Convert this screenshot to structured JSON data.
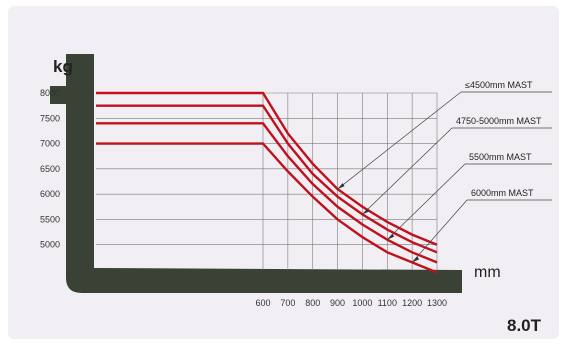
{
  "chart_data": {
    "type": "line",
    "title": "",
    "y_unit": "kg",
    "x_unit": "mm",
    "model_label": "8.0T",
    "ylim": [
      4500,
      8000
    ],
    "xlim": [
      600,
      1300
    ],
    "y_ticks": [
      8000,
      7500,
      7000,
      6500,
      6000,
      5500,
      5000
    ],
    "y_tick_labels": [
      "8000",
      "7500",
      "7000",
      "6500",
      "6000",
      "5500",
      "5000"
    ],
    "x_ticks": [
      600,
      700,
      800,
      900,
      1000,
      1100,
      1200,
      1300
    ],
    "x_tick_labels": [
      "600",
      "700",
      "800",
      "900",
      "1000",
      "1100",
      "1200",
      "1300"
    ],
    "grid": true,
    "line_color": "#c0111d",
    "grid_color": "#7a7a7a",
    "fork_color": "#3a4236",
    "series": [
      {
        "name": "≤4500mm MAST",
        "x": [
          600,
          700,
          800,
          900,
          1000,
          1100,
          1200,
          1300
        ],
        "y": [
          8000,
          7200,
          6600,
          6100,
          5750,
          5450,
          5200,
          5000
        ]
      },
      {
        "name": "4750-5000mm MAST",
        "x": [
          600,
          700,
          800,
          900,
          1000,
          1100,
          1200,
          1300
        ],
        "y": [
          7750,
          7000,
          6400,
          5950,
          5600,
          5300,
          5050,
          4850
        ]
      },
      {
        "name": "5500mm MAST",
        "x": [
          600,
          700,
          800,
          900,
          1000,
          1100,
          1200,
          1300
        ],
        "y": [
          7400,
          6750,
          6200,
          5750,
          5400,
          5100,
          4850,
          4650
        ]
      },
      {
        "name": "6000mm MAST",
        "x": [
          600,
          700,
          800,
          900,
          1000,
          1100,
          1200,
          1300
        ],
        "y": [
          7000,
          6450,
          5950,
          5500,
          5150,
          4850,
          4650,
          4450
        ]
      }
    ]
  }
}
